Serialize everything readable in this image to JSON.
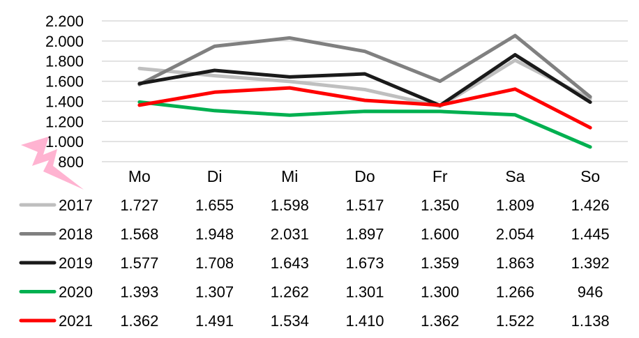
{
  "chart_data": {
    "type": "line",
    "categories": [
      "Mo",
      "Di",
      "Mi",
      "Do",
      "Fr",
      "Sa",
      "So"
    ],
    "yticks": [
      "800",
      "1.000",
      "1.200",
      "1.400",
      "1.600",
      "1.800",
      "2.000",
      "2.200"
    ],
    "ylim": [
      800,
      2200
    ],
    "grid": true,
    "legend": "data-table-left",
    "series": [
      {
        "name": "2017",
        "color": "#bfbfbf",
        "values": [
          1727,
          1655,
          1598,
          1517,
          1350,
          1809,
          1426
        ],
        "labels": [
          "1.727",
          "1.655",
          "1.598",
          "1.517",
          "1.350",
          "1.809",
          "1.426"
        ]
      },
      {
        "name": "2018",
        "color": "#808080",
        "values": [
          1568,
          1948,
          2031,
          1897,
          1600,
          2054,
          1445
        ],
        "labels": [
          "1.568",
          "1.948",
          "2.031",
          "1.897",
          "1.600",
          "2.054",
          "1.445"
        ]
      },
      {
        "name": "2019",
        "color": "#1a1a1a",
        "values": [
          1577,
          1708,
          1643,
          1673,
          1359,
          1863,
          1392
        ],
        "labels": [
          "1.577",
          "1.708",
          "1.643",
          "1.673",
          "1.359",
          "1.863",
          "1.392"
        ]
      },
      {
        "name": "2020",
        "color": "#00b050",
        "values": [
          1393,
          1307,
          1262,
          1301,
          1300,
          1266,
          946
        ],
        "labels": [
          "1.393",
          "1.307",
          "1.262",
          "1.301",
          "1.300",
          "1.266",
          "946"
        ]
      },
      {
        "name": "2021",
        "color": "#ff0000",
        "values": [
          1362,
          1491,
          1534,
          1410,
          1362,
          1522,
          1138
        ],
        "labels": [
          "1.362",
          "1.491",
          "1.534",
          "1.410",
          "1.362",
          "1.522",
          "1.138"
        ]
      }
    ],
    "decoration": {
      "icon": "lightning-bolt-icon",
      "color": "#ffb3d1"
    }
  }
}
